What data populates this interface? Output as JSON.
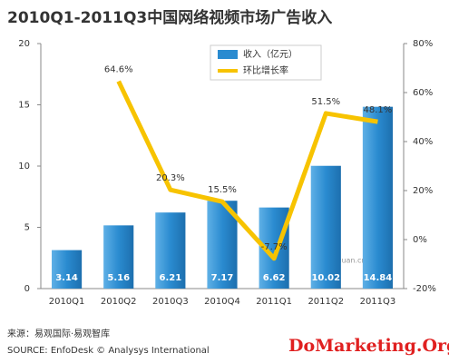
{
  "chart_data": {
    "type": "bar",
    "title": "2010Q1-2011Q3中国网络视频市场广告收入",
    "categories": [
      "2010Q1",
      "2010Q2",
      "2010Q3",
      "2010Q4",
      "2011Q1",
      "2011Q2",
      "2011Q3"
    ],
    "series": [
      {
        "name": "收入（亿元）",
        "type": "bar",
        "color": "#2a8bd0",
        "values": [
          3.14,
          5.16,
          6.21,
          7.17,
          6.62,
          10.02,
          14.84
        ]
      },
      {
        "name": "环比增长率",
        "type": "line",
        "axis": "y2",
        "color": "#f7c300",
        "values": [
          null,
          64.6,
          20.3,
          15.5,
          -7.7,
          51.5,
          48.1
        ],
        "value_labels": [
          null,
          "64.6%",
          "20.3%",
          "15.5%",
          "-7.7%",
          "51.5%",
          "48.1%"
        ]
      }
    ],
    "ylim": [
      0,
      20
    ],
    "yticks": [
      0,
      5,
      10,
      15,
      20
    ],
    "y2lim": [
      -20,
      80
    ],
    "y2ticks": [
      {
        "value": -20,
        "label": "-20%"
      },
      {
        "value": 0,
        "label": "0%"
      },
      {
        "value": 20,
        "label": "20%"
      },
      {
        "value": 40,
        "label": "40%"
      },
      {
        "value": 60,
        "label": "60%"
      },
      {
        "value": 80,
        "label": "80%"
      }
    ],
    "grid": false,
    "legend": "top-center",
    "watermark_url": "www.eguan.cn",
    "source": "来源：易观国际·易观智库",
    "source_en": "SOURCE: EnfoDesk © Analysys International",
    "watermark": "DoMarketing.Org"
  }
}
